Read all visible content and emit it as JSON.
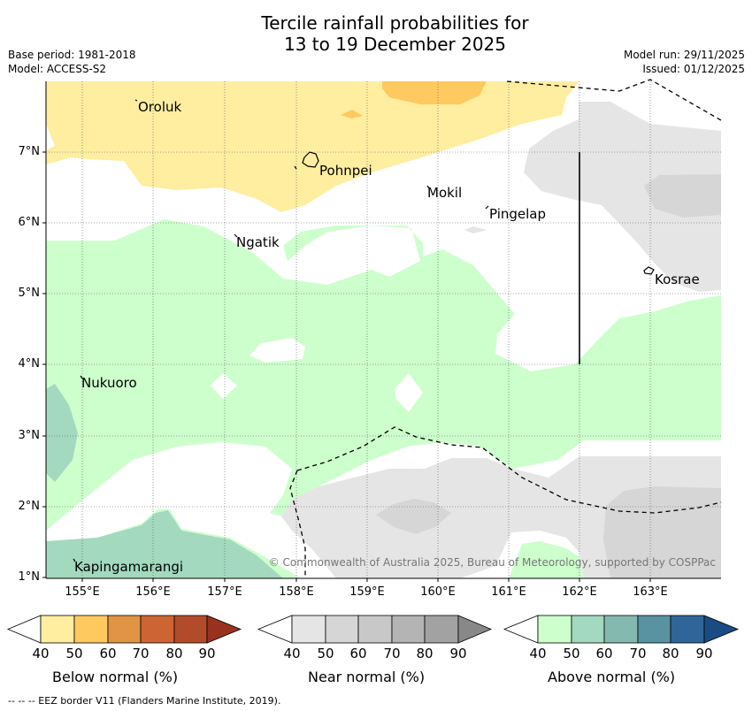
{
  "title": {
    "line1": "Tercile rainfall probabilities for",
    "line2": "13 to 19 December 2025"
  },
  "meta": {
    "base_period": "Base period: 1981-2018",
    "model": "Model: ACCESS-S2",
    "model_run": "Model run: 29/11/2025",
    "issued": "Issued: 01/12/2025"
  },
  "axes": {
    "lat_labels": [
      "7°N",
      "6°N",
      "5°N",
      "4°N",
      "3°N",
      "2°N",
      "1°N"
    ],
    "lon_labels": [
      "155°E",
      "156°E",
      "157°E",
      "158°E",
      "159°E",
      "160°E",
      "161°E",
      "162°E",
      "163°E"
    ]
  },
  "places": [
    {
      "name": "Oroluk"
    },
    {
      "name": "Pohnpei"
    },
    {
      "name": "Mokil"
    },
    {
      "name": "Pingelap"
    },
    {
      "name": "Ngatik"
    },
    {
      "name": "Kosrae"
    },
    {
      "name": "Nukuoro"
    },
    {
      "name": "Kapingamarangi"
    }
  ],
  "copyright": "© Commonwealth of Australia 2025, Bureau of Meteorology, supported by COSPPac",
  "colorbars": [
    {
      "label": "Below normal (%)",
      "ticks": [
        "40",
        "50",
        "60",
        "70",
        "80",
        "90"
      ],
      "colors": [
        "#ffeda0",
        "#fec95f",
        "#e19443",
        "#cd6433",
        "#b24b29",
        "#98321e"
      ]
    },
    {
      "label": "Near normal (%)",
      "ticks": [
        "40",
        "50",
        "60",
        "70",
        "80",
        "90"
      ],
      "colors": [
        "#e5e5e5",
        "#d6d6d6",
        "#c8c8c8",
        "#b4b4b4",
        "#a2a2a2",
        "#888888"
      ]
    },
    {
      "label": "Above normal (%)",
      "ticks": [
        "40",
        "50",
        "60",
        "70",
        "80",
        "90"
      ],
      "colors": [
        "#ccffcc",
        "#a2d9bf",
        "#84b9af",
        "#5992a1",
        "#2f6599",
        "#1a4c82"
      ]
    }
  ],
  "footer": "--  --  -- EEZ border V11 (Flanders Marine Institute, 2019)."
}
